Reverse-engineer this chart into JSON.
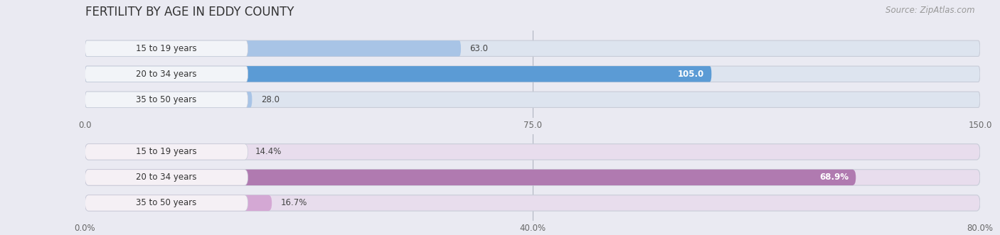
{
  "title": "FERTILITY BY AGE IN EDDY COUNTY",
  "source": "Source: ZipAtlas.com",
  "top_chart": {
    "categories": [
      "15 to 19 years",
      "20 to 34 years",
      "35 to 50 years"
    ],
    "values": [
      63.0,
      105.0,
      28.0
    ],
    "xlim": [
      0,
      150
    ],
    "xticks": [
      0.0,
      75.0,
      150.0
    ],
    "xtick_labels": [
      "0.0",
      "75.0",
      "150.0"
    ],
    "bar_color_light": "#a8c4e6",
    "bar_color_dark": "#5b9bd5",
    "bg_bar_color": "#dde4ef",
    "white_cap_color": "#f2f4f8",
    "value_threshold": 100,
    "inside_label_color": "#ffffff",
    "outside_label_color": "#555555"
  },
  "bottom_chart": {
    "categories": [
      "15 to 19 years",
      "20 to 34 years",
      "35 to 50 years"
    ],
    "values": [
      14.4,
      68.9,
      16.7
    ],
    "xlim": [
      0,
      80
    ],
    "xticks": [
      0.0,
      40.0,
      80.0
    ],
    "xtick_labels": [
      "0.0%",
      "40.0%",
      "80.0%"
    ],
    "bar_color_light": "#d4a8d4",
    "bar_color_dark": "#b07ab0",
    "bg_bar_color": "#e8dded",
    "white_cap_color": "#f5f0f5",
    "value_threshold": 60,
    "inside_label_color": "#ffffff",
    "outside_label_color": "#555555"
  },
  "background_color": "#eaeaf2",
  "bar_height": 0.62,
  "label_fontsize": 8.5,
  "tick_fontsize": 8.5,
  "title_fontsize": 12,
  "source_fontsize": 8.5,
  "category_fontsize": 8.5
}
